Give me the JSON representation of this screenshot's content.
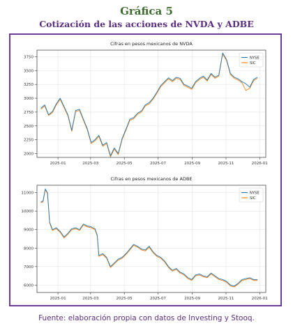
{
  "page": {
    "title": "Gráfica 5",
    "subtitle": "Cotización de las acciones de NVDA y ADBE",
    "source": "Fuente: elaboración propia con datos de Investing y Stooq."
  },
  "colors": {
    "nyse": "#1f77b4",
    "sic": "#ff7f0e",
    "frame": "#6a3b96",
    "title": "#3e6b2e",
    "subtitle": "#5a2d82"
  },
  "chart_data": [
    {
      "type": "line",
      "title": "Cifras en pesos mexicanos de NVDA",
      "xlabel": "",
      "ylabel": "",
      "xlim": [
        "2024-11-24",
        "2026-01-12"
      ],
      "ylim": [
        1930,
        3870
      ],
      "xticks": [
        "2025-01",
        "2025-03",
        "2025-05",
        "2025-07",
        "2025-09",
        "2025-11",
        "2026-01"
      ],
      "yticks": [
        2000,
        2250,
        2500,
        2750,
        3000,
        3250,
        3500,
        3750
      ],
      "grid": true,
      "legend": "top-right",
      "x": [
        "2024-12-01",
        "2024-12-08",
        "2024-12-15",
        "2024-12-22",
        "2024-12-29",
        "2025-01-05",
        "2025-01-12",
        "2025-01-19",
        "2025-01-26",
        "2025-02-02",
        "2025-02-09",
        "2025-02-16",
        "2025-02-23",
        "2025-03-02",
        "2025-03-09",
        "2025-03-16",
        "2025-03-23",
        "2025-03-30",
        "2025-04-06",
        "2025-04-13",
        "2025-04-20",
        "2025-04-27",
        "2025-05-04",
        "2025-05-11",
        "2025-05-18",
        "2025-05-25",
        "2025-06-01",
        "2025-06-08",
        "2025-06-15",
        "2025-06-22",
        "2025-06-29",
        "2025-07-06",
        "2025-07-13",
        "2025-07-20",
        "2025-07-27",
        "2025-08-03",
        "2025-08-10",
        "2025-08-17",
        "2025-08-24",
        "2025-08-31",
        "2025-09-07",
        "2025-09-14",
        "2025-09-21",
        "2025-09-28",
        "2025-10-05",
        "2025-10-12",
        "2025-10-19",
        "2025-10-26",
        "2025-11-02",
        "2025-11-09",
        "2025-11-16",
        "2025-11-23",
        "2025-11-30",
        "2025-12-07",
        "2025-12-14",
        "2025-12-21",
        "2025-12-28"
      ],
      "series": [
        {
          "name": "NYSE",
          "values": [
            2820,
            2880,
            2700,
            2760,
            2900,
            3000,
            2850,
            2700,
            2420,
            2780,
            2800,
            2620,
            2450,
            2200,
            2250,
            2330,
            2150,
            2200,
            1960,
            2100,
            2000,
            2270,
            2440,
            2620,
            2650,
            2730,
            2770,
            2880,
            2920,
            3000,
            3110,
            3230,
            3300,
            3370,
            3320,
            3380,
            3360,
            3250,
            3220,
            3180,
            3300,
            3360,
            3400,
            3330,
            3450,
            3380,
            3420,
            3820,
            3700,
            3450,
            3380,
            3350,
            3300,
            3260,
            3200,
            3340,
            3380
          ]
        },
        {
          "name": "SIC",
          "values": [
            2800,
            2860,
            2690,
            2740,
            2880,
            2980,
            2830,
            2680,
            2400,
            2760,
            2780,
            2600,
            2430,
            2180,
            2230,
            2310,
            2130,
            2180,
            1940,
            2080,
            1980,
            2250,
            2420,
            2600,
            2630,
            2710,
            2750,
            2860,
            2900,
            2980,
            3090,
            3210,
            3280,
            3350,
            3300,
            3360,
            3340,
            3230,
            3200,
            3160,
            3280,
            3340,
            3380,
            3310,
            3430,
            3360,
            3400,
            3800,
            3680,
            3430,
            3360,
            3330,
            3280,
            3140,
            3180,
            3320,
            3360
          ]
        }
      ]
    },
    {
      "type": "line",
      "title": "Cifras en pesos mexicanos de ADBE",
      "xlabel": "",
      "ylabel": "",
      "xlim": [
        "2024-11-24",
        "2026-01-12"
      ],
      "ylim": [
        5600,
        11400
      ],
      "xticks": [
        "2025-01",
        "2025-03",
        "2025-05",
        "2025-07",
        "2025-09",
        "2025-11",
        "2026-01"
      ],
      "yticks": [
        6000,
        7000,
        8000,
        9000,
        10000,
        11000
      ],
      "grid": true,
      "legend": "top-right",
      "x": [
        "2024-12-01",
        "2024-12-05",
        "2024-12-09",
        "2024-12-13",
        "2024-12-17",
        "2024-12-22",
        "2024-12-29",
        "2025-01-05",
        "2025-01-12",
        "2025-01-19",
        "2025-01-26",
        "2025-02-02",
        "2025-02-09",
        "2025-02-16",
        "2025-02-23",
        "2025-03-02",
        "2025-03-09",
        "2025-03-13",
        "2025-03-16",
        "2025-03-23",
        "2025-03-30",
        "2025-04-06",
        "2025-04-13",
        "2025-04-20",
        "2025-04-27",
        "2025-05-04",
        "2025-05-11",
        "2025-05-18",
        "2025-05-25",
        "2025-06-01",
        "2025-06-08",
        "2025-06-15",
        "2025-06-22",
        "2025-06-29",
        "2025-07-06",
        "2025-07-13",
        "2025-07-20",
        "2025-07-27",
        "2025-08-03",
        "2025-08-10",
        "2025-08-17",
        "2025-08-24",
        "2025-08-31",
        "2025-09-07",
        "2025-09-14",
        "2025-09-21",
        "2025-09-28",
        "2025-10-05",
        "2025-10-12",
        "2025-10-19",
        "2025-10-26",
        "2025-11-02",
        "2025-11-09",
        "2025-11-16",
        "2025-11-23",
        "2025-11-30",
        "2025-12-07",
        "2025-12-14",
        "2025-12-21",
        "2025-12-28"
      ],
      "series": [
        {
          "name": "NYSE",
          "values": [
            10500,
            10550,
            11200,
            11000,
            9400,
            9000,
            9100,
            8900,
            8600,
            8800,
            9050,
            9100,
            9000,
            9300,
            9200,
            9150,
            9050,
            8700,
            7600,
            7700,
            7500,
            7000,
            7200,
            7400,
            7500,
            7700,
            7950,
            8200,
            8100,
            7950,
            7900,
            8100,
            7800,
            7600,
            7500,
            7300,
            7000,
            6800,
            6900,
            6700,
            6600,
            6400,
            6300,
            6550,
            6600,
            6500,
            6450,
            6650,
            6500,
            6350,
            6300,
            6200,
            6000,
            5950,
            6100,
            6300,
            6350,
            6400,
            6300,
            6300
          ]
        },
        {
          "name": "SIC",
          "values": [
            10450,
            10500,
            11150,
            10950,
            9350,
            8950,
            9050,
            8850,
            8550,
            8750,
            9000,
            9050,
            8950,
            9250,
            9150,
            9100,
            9000,
            8650,
            7550,
            7650,
            7450,
            6950,
            7150,
            7350,
            7450,
            7650,
            7900,
            8150,
            8050,
            7900,
            7850,
            8050,
            7750,
            7550,
            7450,
            7250,
            6950,
            6750,
            6850,
            6650,
            6550,
            6350,
            6250,
            6500,
            6550,
            6450,
            6400,
            6600,
            6450,
            6300,
            6250,
            6150,
            5950,
            5900,
            6050,
            6250,
            6300,
            6350,
            6250,
            6250
          ]
        }
      ]
    }
  ]
}
